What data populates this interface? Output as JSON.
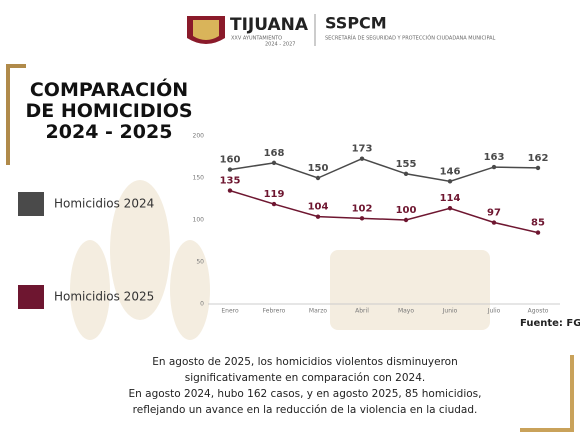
{
  "header": {
    "city": "TIJUANA",
    "council": "XXV AYUNTAMIENTO",
    "period": "2024 - 2027",
    "agency": "SSPCM",
    "agency_name": "SECRETARÍA DE SEGURIDAD Y\nPROTECCIÓN CIUDADANA MUNICIPAL"
  },
  "chart_data": {
    "type": "line",
    "title": "COMPARACIÓN\nDE HOMICIDIOS\n2024 - 2025",
    "categories": [
      "Enero",
      "Febrero",
      "Marzo",
      "Abril",
      "Mayo",
      "Junio",
      "Julio",
      "Agosto"
    ],
    "series": [
      {
        "name": "Homicidios 2024",
        "color": "#4a4a4a",
        "values": [
          160,
          168,
          150,
          173,
          155,
          146,
          163,
          162
        ]
      },
      {
        "name": "Homicidios 2025",
        "color": "#6e1630",
        "values": [
          135,
          119,
          104,
          102,
          100,
          114,
          97,
          85
        ]
      }
    ],
    "ylim": [
      0,
      200
    ],
    "yticks": [
      0,
      50,
      100,
      150,
      200
    ],
    "grid": false,
    "source": "Fuente: FGE",
    "annotations": [
      "En agosto de 2025, los homicidios violentos disminuyeron",
      "significativamente en comparación con 2024.",
      "En agosto 2024, hubo 162 casos, y en agosto 2025, 85 homicidios,",
      "reflejando un avance en la reducción de la violencia en la ciudad."
    ]
  }
}
